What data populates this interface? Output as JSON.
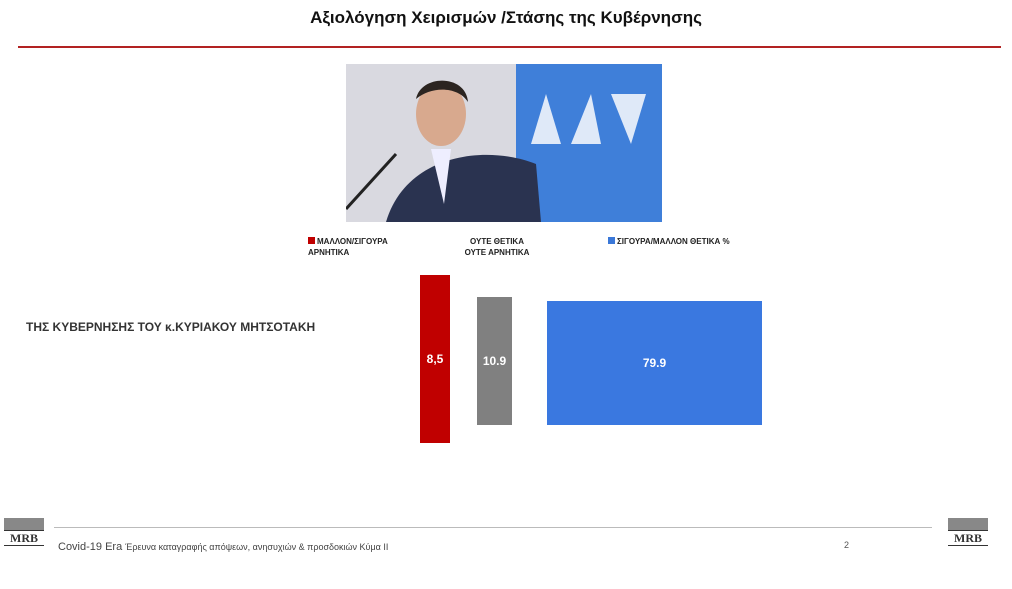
{
  "header": {
    "title": "Αξιολόγηση Χειρισμών /Στάσης της Κυβέρνησης"
  },
  "legend": [
    "ΜΑΛΛΟΝ/ΣΙΓΟΥΡΑ ΑΡΝΗΤΙΚΑ",
    "ΟΥΤΕ ΘΕΤΙΚΑ ΟΥΤΕ ΑΡΝΗΤΙΚΑ",
    "ΣΙΓΟΥΡΑ/ΜΑΛΛΟΝ ΘΕΤΙΚΑ"
  ],
  "unit": "%",
  "row_label": "ΤΗΣ ΚΥΒΕΡΝΗΣΗΣ ΤΟΥ κ.ΚΥΡΙΑΚΟΥ ΜΗΤΣΟΤΑΚΗ",
  "bars": [
    "8,5",
    "10.9",
    "79.9"
  ],
  "footer": {
    "project": "Covid-19 Era",
    "description": "Έρευνα καταγραφής απόψεων, ανησυχιών & προσδοκιών Κύμα ΙΙ",
    "page": "2",
    "logo": "MRB",
    "logo_right": "MRB"
  }
}
